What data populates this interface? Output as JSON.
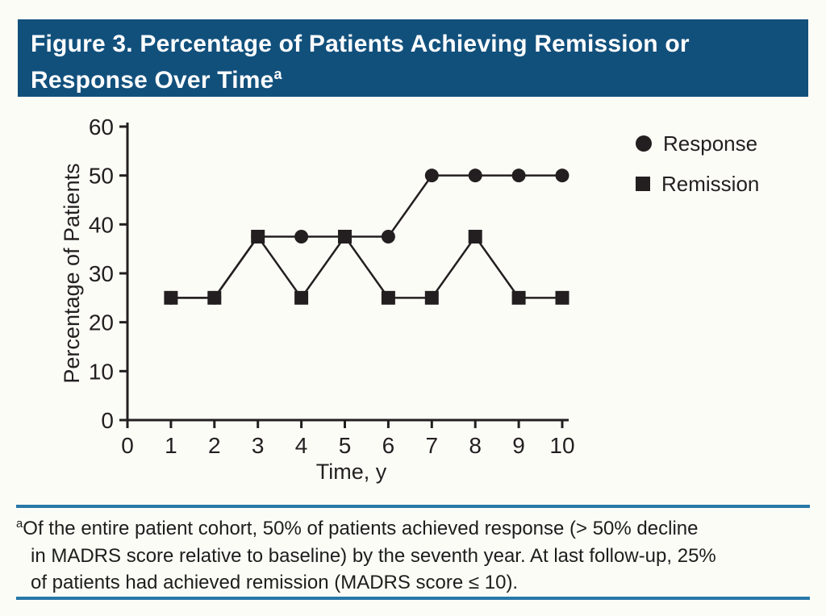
{
  "title": {
    "line1": "Figure 3. Percentage of Patients Achieving Remission or",
    "line2": "Response Over Time",
    "superscript": "a"
  },
  "chart_data": {
    "type": "line",
    "title": "Percentage of Patients Achieving Remission or Response Over Time",
    "x": [
      1,
      2,
      3,
      4,
      5,
      6,
      7,
      8,
      9,
      10
    ],
    "series": [
      {
        "name": "Response",
        "marker": "circle",
        "values": [
          25,
          25,
          37.5,
          37.5,
          37.5,
          37.5,
          50,
          50,
          50,
          50
        ]
      },
      {
        "name": "Remission",
        "marker": "square",
        "values": [
          25,
          25,
          37.5,
          25,
          37.5,
          25,
          25,
          37.5,
          25,
          25
        ]
      }
    ],
    "xlabel": "Time, y",
    "ylabel": "Percentage of Patients",
    "xlim": [
      0,
      10
    ],
    "ylim": [
      0,
      60
    ],
    "xticks": [
      0,
      1,
      2,
      3,
      4,
      5,
      6,
      7,
      8,
      9,
      10
    ],
    "yticks": [
      0,
      10,
      20,
      30,
      40,
      50,
      60
    ],
    "grid": false,
    "legend_position": "top-right",
    "line_color": "#231f20"
  },
  "legend": {
    "items": [
      {
        "label": "Response",
        "marker": "circle"
      },
      {
        "label": "Remission",
        "marker": "square"
      }
    ]
  },
  "footnote": {
    "superscript": "a",
    "lines": [
      "Of the entire patient cohort, 50% of patients achieved response (> 50% decline",
      "in MADRS score relative to baseline) by the seventh year. At last follow-up, 25%",
      "of patients had achieved remission (MADRS score ≤ 10)."
    ]
  },
  "colors": {
    "banner_background": "#12507c",
    "banner_text": "#ffffff",
    "divider_rule": "#2878a8",
    "page_background": "#fcfcf7",
    "ink": "#231f20"
  }
}
